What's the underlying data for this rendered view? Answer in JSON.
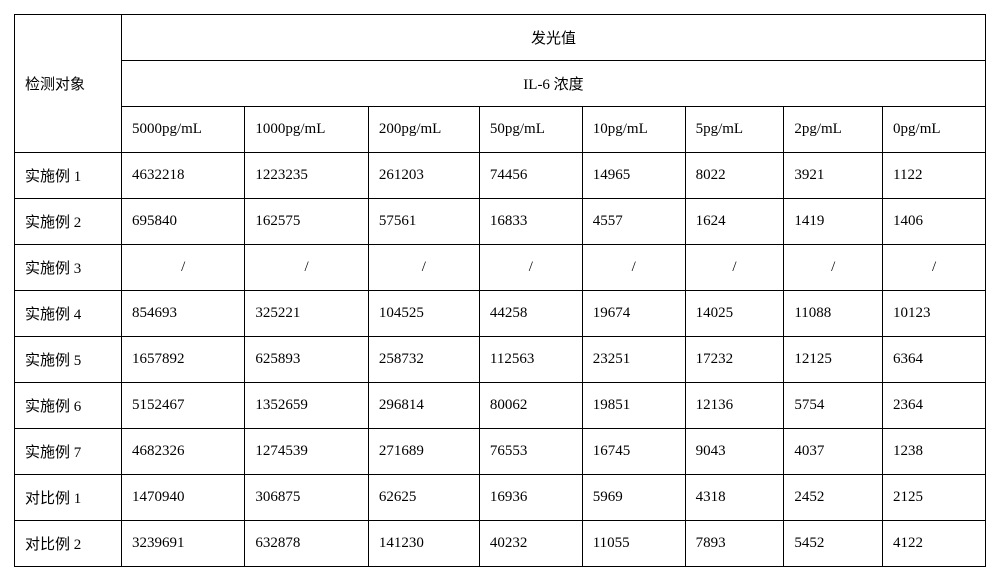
{
  "table": {
    "row_header_label": "检测对象",
    "group_header_1": "发光值",
    "group_header_2": "IL-6 浓度",
    "columns": [
      "5000pg/mL",
      "1000pg/mL",
      "200pg/mL",
      "50pg/mL",
      "10pg/mL",
      "5pg/mL",
      "2pg/mL",
      "0pg/mL"
    ],
    "rows": [
      {
        "label": "实施例 1",
        "values": [
          "4632218",
          "1223235",
          "261203",
          "74456",
          "14965",
          "8022",
          "3921",
          "1122"
        ]
      },
      {
        "label": "实施例 2",
        "values": [
          "695840",
          "162575",
          "57561",
          "16833",
          "4557",
          "1624",
          "1419",
          "1406"
        ]
      },
      {
        "label": "实施例 3",
        "values": [
          "/",
          "/",
          "/",
          "/",
          "/",
          "/",
          "/",
          "/"
        ]
      },
      {
        "label": "实施例 4",
        "values": [
          "854693",
          "325221",
          "104525",
          "44258",
          "19674",
          "14025",
          "11088",
          "10123"
        ]
      },
      {
        "label": "实施例 5",
        "values": [
          "1657892",
          "625893",
          "258732",
          "112563",
          "23251",
          "17232",
          "12125",
          "6364"
        ]
      },
      {
        "label": "实施例 6",
        "values": [
          "5152467",
          "1352659",
          "296814",
          "80062",
          "19851",
          "12136",
          "5754",
          "2364"
        ]
      },
      {
        "label": "实施例 7",
        "values": [
          "4682326",
          "1274539",
          "271689",
          "76553",
          "16745",
          "9043",
          "4037",
          "1238"
        ]
      },
      {
        "label": "对比例 1",
        "values": [
          "1470940",
          "306875",
          "62625",
          "16936",
          "5969",
          "4318",
          "2452",
          "2125"
        ]
      },
      {
        "label": "对比例 2",
        "values": [
          "3239691",
          "632878",
          "141230",
          "40232",
          "11055",
          "7893",
          "5452",
          "4122"
        ]
      }
    ],
    "colors": {
      "border": "#000000",
      "background": "#ffffff",
      "text": "#000000"
    },
    "font": {
      "family": "SimSun",
      "size_pt": 11
    }
  }
}
